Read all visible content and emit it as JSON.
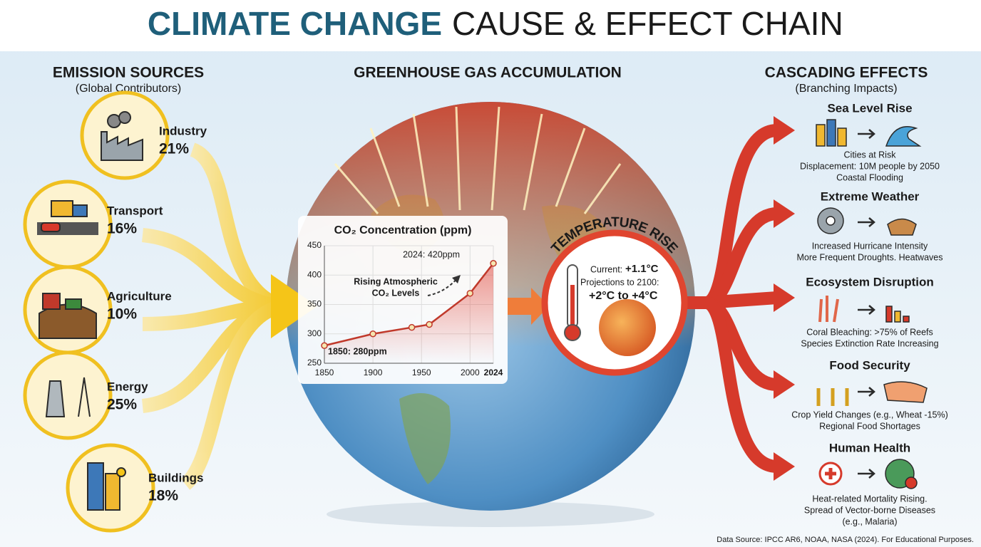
{
  "header": {
    "title_bold": "CLIMATE CHANGE",
    "title_rest": "CAUSE & EFFECT CHAIN"
  },
  "sources": {
    "title": "EMISSION SOURCES",
    "subtitle": "(Global Contributors)",
    "items": [
      {
        "name": "Industry",
        "share": "21%"
      },
      {
        "name": "Transport",
        "share": "16%"
      },
      {
        "name": "Agriculture",
        "share": "10%"
      },
      {
        "name": "Energy",
        "share": "25%"
      },
      {
        "name": "Buildings",
        "share": "18%"
      }
    ]
  },
  "center": {
    "title": "GREENHOUSE GAS ACCUMULATION"
  },
  "chart_data": {
    "type": "line",
    "title": "CO₂ Concentration (ppm)",
    "x": [
      1850,
      1900,
      1940,
      1958,
      2000,
      2024
    ],
    "values": [
      280,
      300,
      311,
      316,
      369,
      420
    ],
    "color": "#c0392b",
    "xlim": [
      1850,
      2024
    ],
    "ylim": [
      250,
      450
    ],
    "xticks": [
      1850,
      1900,
      1950,
      2000,
      2024
    ],
    "yticks": [
      250,
      300,
      350,
      400,
      450
    ],
    "grid": true,
    "annotations": [
      "2024: 420ppm",
      "1850: 280ppm",
      "Rising Atmospheric",
      "CO₂ Levels"
    ]
  },
  "temperature": {
    "title": "TEMPERATURE RISE",
    "current_label": "Current:",
    "current": "+1.1°C",
    "projection_label": "Projections to 2100:",
    "projection": "+2°C to +4°C"
  },
  "effects": {
    "title": "CASCADING EFFECTS",
    "subtitle": "(Branching Impacts)",
    "items": [
      {
        "name": "Sea Level Rise",
        "lines": [
          "Cities at Risk",
          "Displacement: 10M people by 2050",
          "Coastal Flooding"
        ]
      },
      {
        "name": "Extreme Weather",
        "lines": [
          "Increased Hurricane Intensity",
          "More Frequent Droughts. Heatwaves"
        ]
      },
      {
        "name": "Ecosystem Disruption",
        "lines": [
          "Coral Bleaching: >75% of Reefs",
          "Species Extinction Rate Increasing"
        ]
      },
      {
        "name": "Food Security",
        "lines": [
          "Crop Yield Changes (e.g., Wheat -15%)",
          "Regional Food Shortages"
        ]
      },
      {
        "name": "Human Health",
        "lines": [
          "Heat-related Mortality Rising.",
          "Spread of Vector-borne Diseases",
          "(e.g., Malaria)"
        ]
      }
    ]
  },
  "footer": "Data Source: IPCC AR6, NOAA, NASA (2024). For Educational Purposes."
}
